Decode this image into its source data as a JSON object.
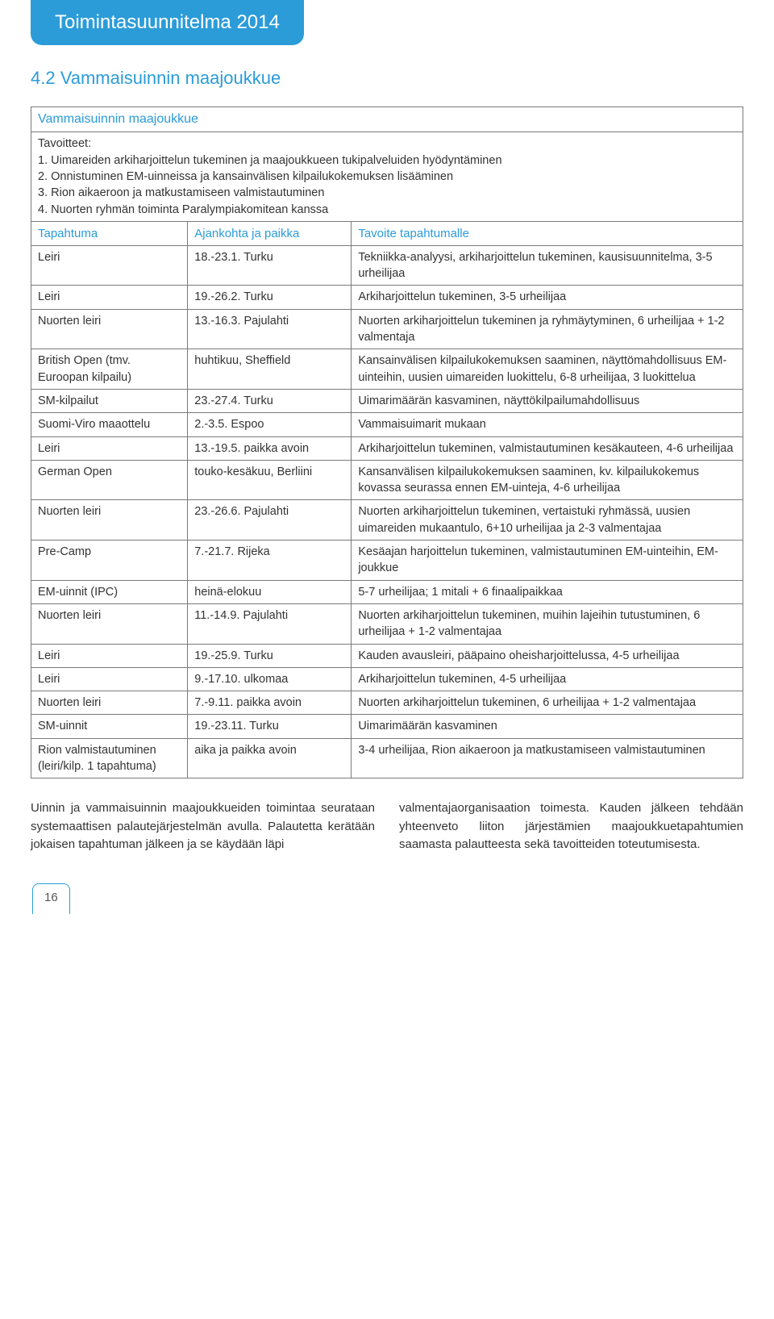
{
  "banner": "Toimintasuunnitelma 2014",
  "heading": "4.2 Vammaisuinnin maajoukkue",
  "table_title": "Vammaisuinnin maajoukkue",
  "goals_label": "Tavoitteet:",
  "goals": [
    "1. Uimareiden arkiharjoittelun tukeminen ja maajoukkueen tukipalveluiden hyödyntäminen",
    "2. Onnistuminen EM-uinneissa ja kansainvälisen kilpailukokemuksen lisääminen",
    "3. Rion aikaeroon ja matkustamiseen valmistautuminen",
    "4. Nuorten ryhmän toiminta Paralympiakomitean kanssa"
  ],
  "headers": {
    "c1": "Tapahtuma",
    "c2": "Ajankohta ja paikka",
    "c3": "Tavoite tapahtumalle"
  },
  "rows": [
    {
      "c1": "Leiri",
      "c2": "18.-23.1. Turku",
      "c3": "Tekniikka-analyysi, arkiharjoittelun tukeminen, kausi­suunnitelma, 3-5 urheilijaa"
    },
    {
      "c1": "Leiri",
      "c2": "19.-26.2. Turku",
      "c3": "Arkiharjoittelun tukeminen, 3-5 urheilijaa"
    },
    {
      "c1": "Nuorten leiri",
      "c2": "13.-16.3. Pajulahti",
      "c3": "Nuorten arkiharjoittelun tukeminen ja ryhmäytyminen, 6 urheilijaa + 1-2 valmentaja"
    },
    {
      "c1": "British Open (tmv. Euroopan kilpailu)",
      "c2": "huhtikuu, Sheffield",
      "c3": "Kansainvälisen kilpailukokemuksen saaminen, näyttö­mahdollisuus EM-uinteihin, uusien uimareiden luokittelu, 6-8 urheilijaa, 3 luokittelua"
    },
    {
      "c1": "SM-kilpailut",
      "c2": "23.-27.4. Turku",
      "c3": "Uimarimäärän kasvaminen, näyttökilpailumahdollisuus"
    },
    {
      "c1": "Suomi-Viro maaottelu",
      "c2": "2.-3.5. Espoo",
      "c3": "Vammaisuimarit mukaan"
    },
    {
      "c1": "Leiri",
      "c2": "13.-19.5. paikka avoin",
      "c3": "Arkiharjoittelun tukeminen, valmistautuminen kesäkauteen, 4-6 urheilijaa"
    },
    {
      "c1": "German Open",
      "c2": "touko-kesäkuu, Berliini",
      "c3": "Kansanvälisen kilpailukokemuksen saaminen, kv. kilpailukokemus kovassa seurassa ennen EM-uinteja, 4-6 urheilijaa"
    },
    {
      "c1": "Nuorten leiri",
      "c2": "23.-26.6. Pajulahti",
      "c3": "Nuorten arkiharjoittelun tukeminen, vertaistuki ryhmässä, uusien uimareiden mukaantulo, 6+10 urheilijaa ja 2-3 valmentajaa"
    },
    {
      "c1": "Pre-Camp",
      "c2": "7.-21.7. Rijeka",
      "c3": "Kesäajan harjoittelun tukeminen, valmistautuminen EM-uinteihin, EM-joukkue"
    },
    {
      "c1": "EM-uinnit (IPC)",
      "c2": "heinä-elokuu",
      "c3": "5-7 urheilijaa; 1 mitali + 6 finaalipaikkaa"
    },
    {
      "c1": "Nuorten leiri",
      "c2": "11.-14.9. Pajulahti",
      "c3": "Nuorten arkiharjoittelun tukeminen, muihin lajeihin tutustuminen, 6 urheilijaa + 1-2 valmentajaa"
    },
    {
      "c1": "Leiri",
      "c2": "19.-25.9. Turku",
      "c3": "Kauden avausleiri, pääpaino oheisharjoittelussa, 4-5 urheilijaa"
    },
    {
      "c1": "Leiri",
      "c2": "9.-17.10. ulkomaa",
      "c3": "Arkiharjoittelun tukeminen, 4-5 urheilijaa"
    },
    {
      "c1": "Nuorten leiri",
      "c2": "7.-9.11. paikka avoin",
      "c3": "Nuorten arkiharjoittelun tukeminen, 6 urheilijaa + 1-2 valmentajaa"
    },
    {
      "c1": "SM-uinnit",
      "c2": "19.-23.11. Turku",
      "c3": "Uimarimäärän kasvaminen"
    },
    {
      "c1": "Rion valmistautu­minen (leiri/kilp. 1 tapahtuma)",
      "c2": "aika ja paikka avoin",
      "c3": "3-4 urheilijaa, Rion aikaeroon ja matkustamiseen valmistautuminen"
    }
  ],
  "bottom": {
    "left": "Uinnin ja vammaisuinnin maajoukkueiden toimintaa seurataan systemaattisen palaute­järjestelmän avulla. Palautetta kerätään jokai­sen tapahtuman jälkeen ja se käydään läpi",
    "right": "valmentajaorganisaation toimesta. Kauden jälkeen tehdään yhteenveto liiton järjestämi­en maajoukkuetapahtumien saamasta palaut­teesta sekä tavoitteiden toteutumisesta."
  },
  "page_number": "16"
}
